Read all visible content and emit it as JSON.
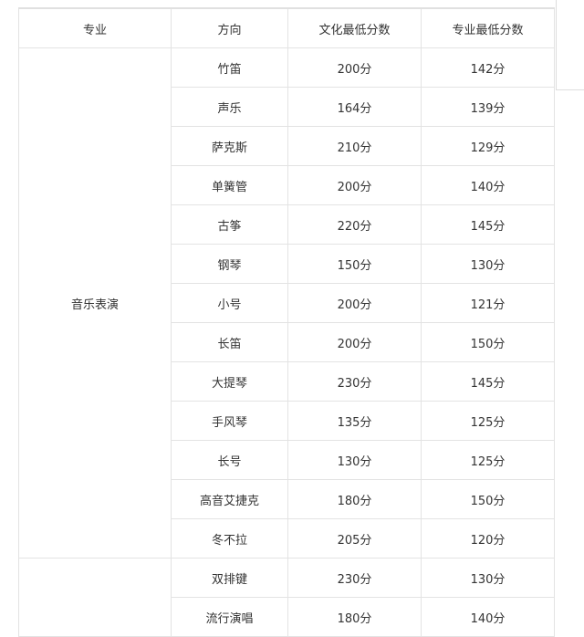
{
  "table": {
    "headers": [
      "专业",
      "方向",
      "文化最低分数",
      "专业最低分数"
    ],
    "groups": [
      {
        "major": "音乐表演",
        "rows": [
          {
            "direction": "竹笛",
            "culture": "200分",
            "professional": "142分"
          },
          {
            "direction": "声乐",
            "culture": "164分",
            "professional": "139分"
          },
          {
            "direction": "萨克斯",
            "culture": "210分",
            "professional": "129分"
          },
          {
            "direction": "单簧管",
            "culture": "200分",
            "professional": "140分"
          },
          {
            "direction": "古筝",
            "culture": "220分",
            "professional": "145分"
          },
          {
            "direction": "钢琴",
            "culture": "150分",
            "professional": "130分"
          },
          {
            "direction": "小号",
            "culture": "200分",
            "professional": "121分"
          },
          {
            "direction": "长笛",
            "culture": "200分",
            "professional": "150分"
          },
          {
            "direction": "大提琴",
            "culture": "230分",
            "professional": "145分"
          },
          {
            "direction": "手风琴",
            "culture": "135分",
            "professional": "125分"
          },
          {
            "direction": "长号",
            "culture": "130分",
            "professional": "125分"
          },
          {
            "direction": "高音艾捷克",
            "culture": "180分",
            "professional": "150分"
          },
          {
            "direction": "冬不拉",
            "culture": "205分",
            "professional": "120分"
          }
        ]
      },
      {
        "major": "",
        "rows": [
          {
            "direction": "双排键",
            "culture": "230分",
            "professional": "130分"
          },
          {
            "direction": "流行演唱",
            "culture": "180分",
            "professional": "140分"
          }
        ]
      }
    ]
  }
}
